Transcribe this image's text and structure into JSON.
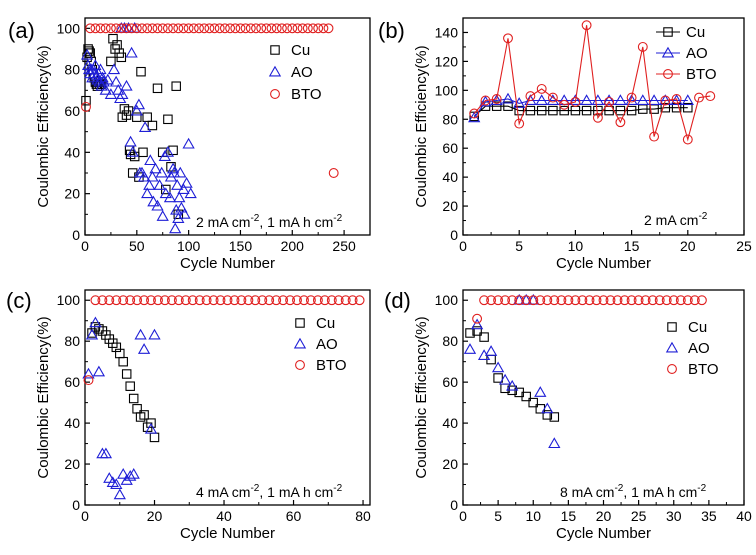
{
  "chart_data": [
    {
      "panel": "(a)",
      "type": "scatter",
      "xlabel": "Cycle Number",
      "ylabel": "Coulombic Efficiency(%)",
      "xlim": [
        0,
        275
      ],
      "ylim": [
        0,
        105
      ],
      "xticks": [
        0,
        50,
        100,
        150,
        200,
        250
      ],
      "yticks": [
        0,
        20,
        40,
        60,
        80,
        100
      ],
      "annotation": {
        "base": "2 mA cm",
        "sup1": "-2",
        "mid": ", 1 mA h cm",
        "sup2": "-2"
      },
      "legend": [
        "Cu",
        "AO",
        "BTO"
      ],
      "series": [
        {
          "name": "Cu",
          "marker": "square",
          "color": "#000000",
          "connected": false,
          "x": [
            1,
            2,
            3,
            4,
            5,
            6,
            7,
            8,
            9,
            10,
            11,
            12,
            13,
            14,
            15,
            16,
            25,
            27,
            29,
            31,
            33,
            35,
            36,
            38,
            40,
            42,
            43,
            44,
            46,
            48,
            50,
            52,
            54,
            56,
            60,
            65,
            70,
            75,
            78,
            80,
            83,
            85,
            88,
            90
          ],
          "y": [
            65,
            86,
            90,
            89,
            88,
            84,
            80,
            78,
            76,
            74,
            73,
            72,
            74,
            73,
            74,
            73,
            84,
            95,
            90,
            92,
            88,
            86,
            57,
            61,
            58,
            60,
            41,
            39,
            30,
            38,
            57,
            28,
            79,
            40,
            57,
            53,
            71,
            40,
            22,
            56,
            33,
            41,
            72,
            10
          ]
        },
        {
          "name": "AO",
          "marker": "triangle",
          "color": "#1f1fd6",
          "connected": false,
          "x": [
            2,
            3,
            4,
            5,
            6,
            7,
            8,
            9,
            10,
            11,
            12,
            13,
            14,
            15,
            16,
            17,
            18,
            20,
            22,
            25,
            28,
            30,
            32,
            34,
            35,
            36,
            38,
            40,
            42,
            44,
            45,
            46,
            48,
            50,
            52,
            53,
            55,
            57,
            58,
            60,
            62,
            63,
            65,
            66,
            68,
            70,
            72,
            74,
            75,
            77,
            78,
            80,
            82,
            83,
            85,
            86,
            87,
            88,
            89,
            90,
            91,
            92,
            93,
            95,
            96,
            98,
            100,
            102
          ],
          "y": [
            87,
            82,
            80,
            78,
            80,
            76,
            80,
            78,
            82,
            77,
            75,
            78,
            74,
            80,
            72,
            76,
            74,
            70,
            75,
            68,
            80,
            74,
            70,
            66,
            100,
            68,
            100,
            72,
            100,
            45,
            88,
            40,
            100,
            60,
            63,
            30,
            30,
            28,
            52,
            20,
            24,
            36,
            28,
            16,
            32,
            14,
            24,
            30,
            9,
            38,
            20,
            40,
            18,
            28,
            32,
            30,
            3,
            12,
            24,
            8,
            18,
            30,
            13,
            22,
            10,
            25,
            44,
            20
          ]
        },
        {
          "name": "BTO",
          "marker": "circle",
          "color": "#e02020",
          "connected": false,
          "x": [
            1,
            5,
            10,
            15,
            20,
            25,
            30,
            35,
            40,
            45,
            50,
            55,
            60,
            65,
            70,
            75,
            80,
            85,
            90,
            95,
            100,
            105,
            110,
            115,
            120,
            125,
            130,
            135,
            140,
            145,
            150,
            155,
            160,
            165,
            170,
            175,
            180,
            185,
            190,
            195,
            200,
            205,
            210,
            215,
            220,
            225,
            230,
            235,
            240
          ],
          "y": [
            62,
            100,
            100,
            100,
            100,
            100,
            100,
            100,
            100,
            100,
            100,
            100,
            100,
            100,
            100,
            100,
            100,
            100,
            100,
            100,
            100,
            100,
            100,
            100,
            100,
            100,
            100,
            100,
            100,
            100,
            100,
            100,
            100,
            100,
            100,
            100,
            100,
            100,
            100,
            100,
            100,
            100,
            100,
            100,
            100,
            100,
            100,
            100,
            30
          ]
        }
      ]
    },
    {
      "panel": "(b)",
      "type": "line",
      "xlabel": "Cycle Number",
      "ylabel": "Coulombic Efficiency(%)",
      "xlim": [
        0,
        25
      ],
      "ylim": [
        0,
        150
      ],
      "xticks": [
        0,
        5,
        10,
        15,
        20,
        25
      ],
      "yticks": [
        0,
        20,
        40,
        60,
        80,
        100,
        120,
        140
      ],
      "annotation": {
        "base": "2 mA cm",
        "sup1": "-2",
        "mid": "",
        "sup2": ""
      },
      "legend": [
        "Cu",
        "AO",
        "BTO"
      ],
      "series": [
        {
          "name": "Cu",
          "marker": "square",
          "color": "#000000",
          "connected": true,
          "x": [
            1,
            2,
            3,
            4,
            5,
            6,
            7,
            8,
            9,
            10,
            11,
            12,
            13,
            14,
            15,
            16,
            17,
            18,
            19,
            20
          ],
          "y": [
            82,
            89,
            89,
            89,
            86,
            86,
            86,
            86,
            86,
            86,
            86,
            86,
            86,
            86,
            86,
            87,
            87,
            88,
            88,
            88
          ]
        },
        {
          "name": "AO",
          "marker": "triangle",
          "color": "#1f1fd6",
          "connected": true,
          "x": [
            1,
            2,
            3,
            4,
            5,
            6,
            7,
            8,
            9,
            10,
            11,
            12,
            13,
            14,
            15,
            16,
            17,
            18,
            19,
            20
          ],
          "y": [
            81,
            92,
            93,
            94,
            91,
            93,
            93,
            93,
            93,
            93,
            93,
            93,
            93,
            93,
            93,
            93,
            93,
            93,
            93,
            93
          ]
        },
        {
          "name": "BTO",
          "marker": "circle",
          "color": "#e02020",
          "connected": true,
          "x": [
            1,
            2,
            3,
            4,
            5,
            6,
            7,
            8,
            9,
            10,
            11,
            12,
            13,
            14,
            15,
            16,
            17,
            18,
            19,
            20,
            21,
            22
          ],
          "y": [
            84,
            93,
            94,
            136,
            77,
            96,
            101,
            95,
            90,
            92,
            145,
            81,
            92,
            78,
            95,
            130,
            68,
            93,
            94,
            66,
            95,
            96
          ]
        }
      ]
    },
    {
      "panel": "(c)",
      "type": "scatter",
      "xlabel": "Cycle Number",
      "ylabel": "Coulombic Efficiency(%)",
      "xlim": [
        0,
        82
      ],
      "ylim": [
        0,
        105
      ],
      "xticks": [
        0,
        20,
        40,
        60,
        80
      ],
      "yticks": [
        0,
        20,
        40,
        60,
        80,
        100
      ],
      "annotation": {
        "base": "4 mA cm",
        "sup1": "-2",
        "mid": ", 1 mA h cm",
        "sup2": "-2"
      },
      "legend": [
        "Cu",
        "AO",
        "BTO"
      ],
      "series": [
        {
          "name": "Cu",
          "marker": "square",
          "color": "#000000",
          "connected": false,
          "x": [
            2,
            3,
            4,
            5,
            6,
            7,
            8,
            9,
            10,
            11,
            12,
            13,
            14,
            15,
            16,
            17,
            18,
            19,
            20
          ],
          "y": [
            84,
            87,
            86,
            85,
            83,
            81,
            79,
            77,
            74,
            70,
            64,
            58,
            52,
            47,
            43,
            44,
            38,
            40,
            33
          ]
        },
        {
          "name": "AO",
          "marker": "triangle",
          "color": "#1f1fd6",
          "connected": false,
          "x": [
            1,
            2,
            3,
            4,
            5,
            6,
            7,
            8,
            9,
            10,
            11,
            12,
            13,
            14,
            16,
            17,
            19,
            20
          ],
          "y": [
            64,
            83,
            89,
            65,
            25,
            25,
            13,
            11,
            10,
            5,
            15,
            12,
            14,
            15,
            83,
            76,
            37,
            83
          ]
        },
        {
          "name": "BTO",
          "marker": "circle",
          "color": "#e02020",
          "connected": false,
          "x": [
            1,
            3,
            5,
            7,
            9,
            11,
            13,
            15,
            17,
            19,
            21,
            23,
            25,
            27,
            29,
            31,
            33,
            35,
            37,
            39,
            41,
            43,
            45,
            47,
            49,
            51,
            53,
            55,
            57,
            59,
            61,
            63,
            65,
            67,
            69,
            71,
            73,
            75,
            77,
            79
          ],
          "y": [
            61,
            100,
            100,
            100,
            100,
            100,
            100,
            100,
            100,
            100,
            100,
            100,
            100,
            100,
            100,
            100,
            100,
            100,
            100,
            100,
            100,
            100,
            100,
            100,
            100,
            100,
            100,
            100,
            100,
            100,
            100,
            100,
            100,
            100,
            100,
            100,
            100,
            100,
            100,
            100
          ]
        }
      ]
    },
    {
      "panel": "(d)",
      "type": "scatter",
      "xlabel": "Cycle Number",
      "ylabel": "Coulombic Efficiency(%)",
      "xlim": [
        0,
        40
      ],
      "ylim": [
        0,
        105
      ],
      "xticks": [
        0,
        5,
        10,
        15,
        20,
        25,
        30,
        35,
        40
      ],
      "yticks": [
        0,
        20,
        40,
        60,
        80,
        100
      ],
      "annotation": {
        "base": "8 mA cm",
        "sup1": "-2",
        "mid": ", 1 mA h cm",
        "sup2": "-2"
      },
      "legend": [
        "Cu",
        "AO",
        "BTO"
      ],
      "series": [
        {
          "name": "Cu",
          "marker": "square",
          "color": "#000000",
          "connected": false,
          "x": [
            1,
            2,
            3,
            4,
            5,
            6,
            7,
            8,
            9,
            10,
            11,
            12,
            13
          ],
          "y": [
            84,
            85,
            82,
            71,
            62,
            57,
            56,
            55,
            53,
            50,
            47,
            44,
            43
          ]
        },
        {
          "name": "AO",
          "marker": "triangle",
          "color": "#1f1fd6",
          "connected": false,
          "x": [
            1,
            2,
            3,
            4,
            5,
            6,
            7,
            8,
            9,
            10,
            11,
            12,
            13
          ],
          "y": [
            76,
            88,
            73,
            75,
            67,
            61,
            58,
            100,
            100,
            100,
            55,
            47,
            30
          ]
        },
        {
          "name": "BTO",
          "marker": "circle",
          "color": "#e02020",
          "connected": false,
          "x": [
            2,
            3,
            4,
            5,
            6,
            7,
            8,
            9,
            10,
            11,
            12,
            13,
            14,
            15,
            16,
            17,
            18,
            19,
            20,
            21,
            22,
            23,
            24,
            25,
            26,
            27,
            28,
            29,
            30,
            31,
            32,
            33,
            34
          ],
          "y": [
            91,
            100,
            100,
            100,
            100,
            100,
            100,
            100,
            100,
            100,
            100,
            100,
            100,
            100,
            100,
            100,
            100,
            100,
            100,
            100,
            100,
            100,
            100,
            100,
            100,
            100,
            100,
            100,
            100,
            100,
            100,
            100,
            100
          ]
        }
      ]
    }
  ]
}
